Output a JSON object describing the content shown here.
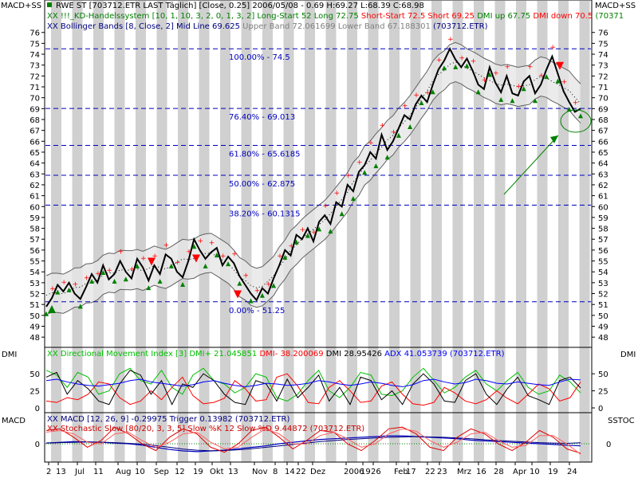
{
  "header": {
    "corner_left": "MACD+SS",
    "corner_right": "MACD+SS",
    "line1": "RWE ST [703712.ETR LAST Täglich] [Close, 0.25] 2006/05/08 - 0.69 H:69.27 L:68.39 C:68.98",
    "line2_parts": [
      {
        "text": "XX !!!_KD-Handelssystem [10, 1, 10, 3, 2, 0, 1, 3, 2] Long-Start 52 Long 72.75 ",
        "color": "#008000"
      },
      {
        "text": "Short-Start 72.5 Short 69.25 ",
        "color": "#ff0000"
      },
      {
        "text": "DMI up 67.75 ",
        "color": "#008000"
      },
      {
        "text": "DMI down 70.5 ",
        "color": "#ff0000"
      },
      {
        "text": "(70371",
        "color": "#008000"
      }
    ],
    "line3_parts": [
      {
        "text": "XX Bollinger Bands [8, Close, 2] Mid Line 69.625 ",
        "color": "#000080"
      },
      {
        "text": "Upper Band 72.061699 Lower Band 67.188301 ",
        "color": "#808080"
      },
      {
        "text": "(703712.ETR)",
        "color": "#000080"
      }
    ]
  },
  "dmi_panel": {
    "label_left": "DMI",
    "label_right": "DMI",
    "legend_parts": [
      {
        "text": "XX Directional Movement Index [3] DMI+ 21.045851 ",
        "color": "#00c000"
      },
      {
        "text": "DMI- 38.200069 ",
        "color": "#ff0000"
      },
      {
        "text": "DMI 28.95426 ",
        "color": "#000000"
      },
      {
        "text": "ADX 41.053739 ",
        "color": "#0000ff"
      },
      {
        "text": "(703712.ETR)",
        "color": "#0000ff"
      }
    ],
    "y_ticks": [
      "50",
      "25",
      "0"
    ]
  },
  "macd_panel": {
    "label_left": "MACD",
    "label_right": "SSTOC",
    "legend1": "XX MACD [12, 26, 9] -0.29975 Trigger 0.13982 (703712.ETR)",
    "legend2": "XX Stochastic Slow [80/20, 3, 3, 5] Slow %K 12 Slow %D 9.44872 (703712.ETR)",
    "y_ticks_left": [
      "0"
    ],
    "y_ticks_right": [
      "0"
    ]
  },
  "fibonacci_levels": [
    {
      "label": "100.00% - 74.5",
      "value": 74.5
    },
    {
      "label": "76.40% - 69.013",
      "value": 69.013
    },
    {
      "label": "61.80% - 65.6185",
      "value": 65.6185
    },
    {
      "label": "50.00% - 62.875",
      "value": 62.875
    },
    {
      "label": "38.20% - 60.1315",
      "value": 60.1315
    },
    {
      "label": "0.00% - 51.25",
      "value": 51.25
    }
  ],
  "x_axis_labels": [
    "2",
    "13",
    "Jul",
    "11",
    "Aug",
    "10",
    "Sep",
    "12",
    "19",
    "Okt",
    "13",
    "Nov",
    "8",
    "14",
    "22",
    "Dez",
    "2006",
    "19",
    "26",
    "Feb",
    "17",
    "22",
    "23",
    "Mrz",
    "16",
    "28",
    "Apr",
    "10",
    "19",
    "24"
  ],
  "colors": {
    "price_line": "#000000",
    "fib_line": "#0000c0",
    "long_signal": "#008000",
    "short_signal": "#ff0000",
    "bollinger_band": "#808080",
    "stripe": "#c8c8c8",
    "annotation": "#008000"
  },
  "chart_data": {
    "type": "line",
    "title": "RWE ST [703712.ETR LAST Täglich] [Close, 0.25] 2006/05/08",
    "ylim": [
      47.5,
      76.2
    ],
    "y_ticks": [
      48,
      49,
      50,
      51,
      52,
      53,
      54,
      55,
      56,
      57,
      58,
      59,
      60,
      61,
      62,
      63,
      64,
      65,
      66,
      67,
      68,
      69,
      70,
      71,
      72,
      73,
      74,
      75,
      76
    ],
    "price_series": [
      50.8,
      51.6,
      52.8,
      52.2,
      53.0,
      52.0,
      51.5,
      52.6,
      53.8,
      53.0,
      54.6,
      53.3,
      53.8,
      55.0,
      54.0,
      53.4,
      55.2,
      54.4,
      53.2,
      54.6,
      53.8,
      55.6,
      55.2,
      54.0,
      53.5,
      55.0,
      57.0,
      56.0,
      55.2,
      55.8,
      56.2,
      54.6,
      55.4,
      54.8,
      53.6,
      52.8,
      52.0,
      51.4,
      52.5,
      52.0,
      53.4,
      54.6,
      56.0,
      55.5,
      57.4,
      57.0,
      58.0,
      56.8,
      58.6,
      59.2,
      58.4,
      60.4,
      60.0,
      62.0,
      61.4,
      63.2,
      63.8,
      65.0,
      64.4,
      66.6,
      65.2,
      66.0,
      67.2,
      68.4,
      68.0,
      69.4,
      70.2,
      69.6,
      71.2,
      72.6,
      73.4,
      74.5,
      73.5,
      72.8,
      73.6,
      72.5,
      71.2,
      70.8,
      72.8,
      71.4,
      70.5,
      72.0,
      70.4,
      70.2,
      71.5,
      72.0,
      70.4,
      71.2,
      72.6,
      73.8,
      72.2,
      70.6,
      69.6,
      68.7,
      69.0
    ],
    "fib_levels": [
      74.5,
      69.013,
      65.6185,
      62.875,
      60.1315,
      51.25
    ],
    "dmi_ylim": [
      0,
      70
    ],
    "dmi_plus": [
      55,
      48,
      30,
      52,
      45,
      20,
      25,
      50,
      58,
      40,
      35,
      55,
      30,
      20,
      48,
      58,
      40,
      35,
      22,
      30,
      50,
      45,
      15,
      10,
      20,
      40,
      55,
      25,
      15,
      30,
      52,
      48,
      20,
      18,
      25,
      45,
      58,
      40,
      22,
      30,
      45,
      55,
      35,
      25,
      40,
      52,
      30,
      20,
      25,
      48,
      38,
      22
    ],
    "dmi_minus": [
      10,
      8,
      15,
      12,
      20,
      38,
      35,
      15,
      5,
      10,
      25,
      12,
      30,
      45,
      18,
      6,
      8,
      14,
      40,
      28,
      10,
      12,
      45,
      50,
      32,
      8,
      6,
      30,
      40,
      25,
      8,
      10,
      32,
      38,
      20,
      6,
      4,
      8,
      30,
      22,
      10,
      6,
      12,
      25,
      14,
      6,
      20,
      35,
      28,
      10,
      15,
      38
    ],
    "dmi_line": [
      45,
      52,
      20,
      40,
      28,
      10,
      5,
      35,
      55,
      48,
      20,
      40,
      5,
      35,
      30,
      50,
      40,
      20,
      8,
      5,
      40,
      35,
      10,
      42,
      15,
      30,
      48,
      10,
      30,
      5,
      45,
      40,
      12,
      25,
      5,
      35,
      50,
      35,
      10,
      8,
      40,
      50,
      20,
      5,
      28,
      45,
      18,
      12,
      5,
      40,
      45,
      29
    ],
    "adx": [
      40,
      42,
      38,
      35,
      33,
      32,
      34,
      36,
      40,
      42,
      38,
      36,
      34,
      32,
      34,
      38,
      40,
      36,
      33,
      31,
      33,
      36,
      35,
      33,
      34,
      36,
      40,
      38,
      35,
      33,
      35,
      38,
      36,
      33,
      31,
      34,
      40,
      42,
      38,
      35,
      37,
      42,
      40,
      36,
      35,
      38,
      36,
      34,
      33,
      38,
      42,
      41
    ],
    "macd": [
      0.1,
      0.2,
      0.3,
      0.25,
      0.2,
      0.1,
      0.0,
      -0.2,
      -0.5,
      -0.8,
      -1.0,
      -1.1,
      -1.0,
      -0.9,
      -0.7,
      -0.5,
      -0.3,
      0.0,
      0.2,
      0.4,
      0.6,
      0.7,
      0.8,
      0.9,
      1.0,
      1.1,
      1.1,
      1.0,
      0.9,
      0.8,
      0.7,
      0.5,
      0.4,
      0.3,
      0.2,
      0.1,
      0.0,
      -0.1,
      -0.2,
      -0.3
    ],
    "macd_trigger": [
      0.1,
      0.15,
      0.2,
      0.25,
      0.22,
      0.15,
      0.05,
      -0.05,
      -0.25,
      -0.5,
      -0.75,
      -0.9,
      -0.98,
      -0.95,
      -0.85,
      -0.7,
      -0.5,
      -0.3,
      -0.1,
      0.1,
      0.3,
      0.45,
      0.6,
      0.7,
      0.8,
      0.9,
      0.95,
      1.0,
      0.95,
      0.9,
      0.8,
      0.7,
      0.55,
      0.45,
      0.35,
      0.25,
      0.15,
      0.1,
      0.05,
      0.14
    ],
    "stoch_k": [
      80,
      85,
      60,
      30,
      50,
      90,
      70,
      40,
      20,
      60,
      85,
      70,
      30,
      15,
      40,
      80,
      90,
      60,
      25,
      50,
      80,
      75,
      40,
      20,
      50,
      85,
      90,
      70,
      30,
      20,
      60,
      85,
      70,
      40,
      20,
      45,
      80,
      60,
      25,
      12
    ],
    "stoch_d": [
      75,
      80,
      70,
      45,
      40,
      70,
      75,
      50,
      30,
      45,
      70,
      75,
      45,
      25,
      30,
      60,
      85,
      70,
      40,
      40,
      65,
      75,
      55,
      30,
      40,
      70,
      85,
      78,
      50,
      30,
      45,
      70,
      75,
      50,
      30,
      35,
      65,
      65,
      40,
      9
    ]
  }
}
